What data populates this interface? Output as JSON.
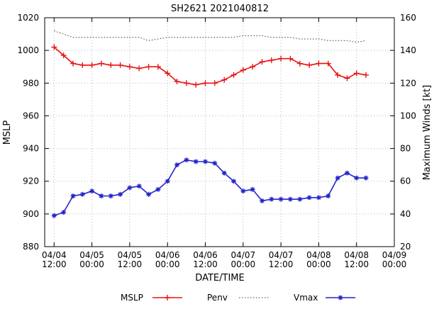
{
  "chart_data": {
    "type": "line",
    "title": "SH2621 2021040812",
    "xlabel": "DATE/TIME",
    "ylabel_left": "MSLP",
    "ylabel_right": "Maximum Winds [kt]",
    "ylim_left": [
      880,
      1020
    ],
    "ylim_right": [
      20,
      160
    ],
    "yticks_left": [
      880,
      900,
      920,
      940,
      960,
      980,
      1000,
      1020
    ],
    "yticks_right": [
      20,
      40,
      60,
      80,
      100,
      120,
      140,
      160
    ],
    "x_tick_labels": [
      "04/04 12:00",
      "04/05 00:00",
      "04/05 12:00",
      "04/06 00:00",
      "04/06 12:00",
      "04/07 00:00",
      "04/07 12:00",
      "04/08 00:00",
      "04/08 12:00",
      "04/09 00:00"
    ],
    "grid": true,
    "legend_position": "bottom-center",
    "x": [
      "04/04 12:00",
      "04/04 15:00",
      "04/04 18:00",
      "04/04 21:00",
      "04/05 00:00",
      "04/05 03:00",
      "04/05 06:00",
      "04/05 09:00",
      "04/05 12:00",
      "04/05 15:00",
      "04/05 18:00",
      "04/05 21:00",
      "04/06 00:00",
      "04/06 03:00",
      "04/06 06:00",
      "04/06 09:00",
      "04/06 12:00",
      "04/06 15:00",
      "04/06 18:00",
      "04/06 21:00",
      "04/07 00:00",
      "04/07 03:00",
      "04/07 06:00",
      "04/07 09:00",
      "04/07 12:00",
      "04/07 15:00",
      "04/07 18:00",
      "04/07 21:00",
      "04/08 00:00",
      "04/08 03:00",
      "04/08 06:00",
      "04/08 09:00",
      "04/08 12:00",
      "04/08 15:00"
    ],
    "series": [
      {
        "name": "MSLP",
        "axis": "left",
        "color": "#e81313",
        "marker": "+",
        "style": "solid",
        "values": [
          1002,
          997,
          992,
          991,
          991,
          992,
          991,
          991,
          990,
          989,
          990,
          990,
          986,
          981,
          980,
          979,
          980,
          980,
          982,
          985,
          988,
          990,
          993,
          994,
          995,
          995,
          992,
          991,
          992,
          992,
          985,
          983,
          986,
          985
        ]
      },
      {
        "name": "Penv",
        "axis": "left",
        "color": "#383838",
        "marker": "none",
        "style": "dotted",
        "values": [
          1012,
          1010,
          1008,
          1008,
          1008,
          1008,
          1008,
          1008,
          1008,
          1008,
          1006,
          1007,
          1008,
          1008,
          1008,
          1008,
          1008,
          1008,
          1008,
          1008,
          1009,
          1009,
          1009,
          1008,
          1008,
          1008,
          1007,
          1007,
          1007,
          1006,
          1006,
          1006,
          1005,
          1006
        ]
      },
      {
        "name": "Vmax",
        "axis": "right",
        "color": "#2323cc",
        "marker": "*",
        "style": "solid",
        "values": [
          39,
          41,
          51,
          52,
          54,
          51,
          51,
          52,
          56,
          57,
          52,
          55,
          60,
          70,
          73,
          72,
          72,
          71,
          65,
          60,
          54,
          55,
          48,
          49,
          49,
          49,
          49,
          50,
          50,
          51,
          62,
          65,
          62,
          62
        ]
      }
    ]
  }
}
